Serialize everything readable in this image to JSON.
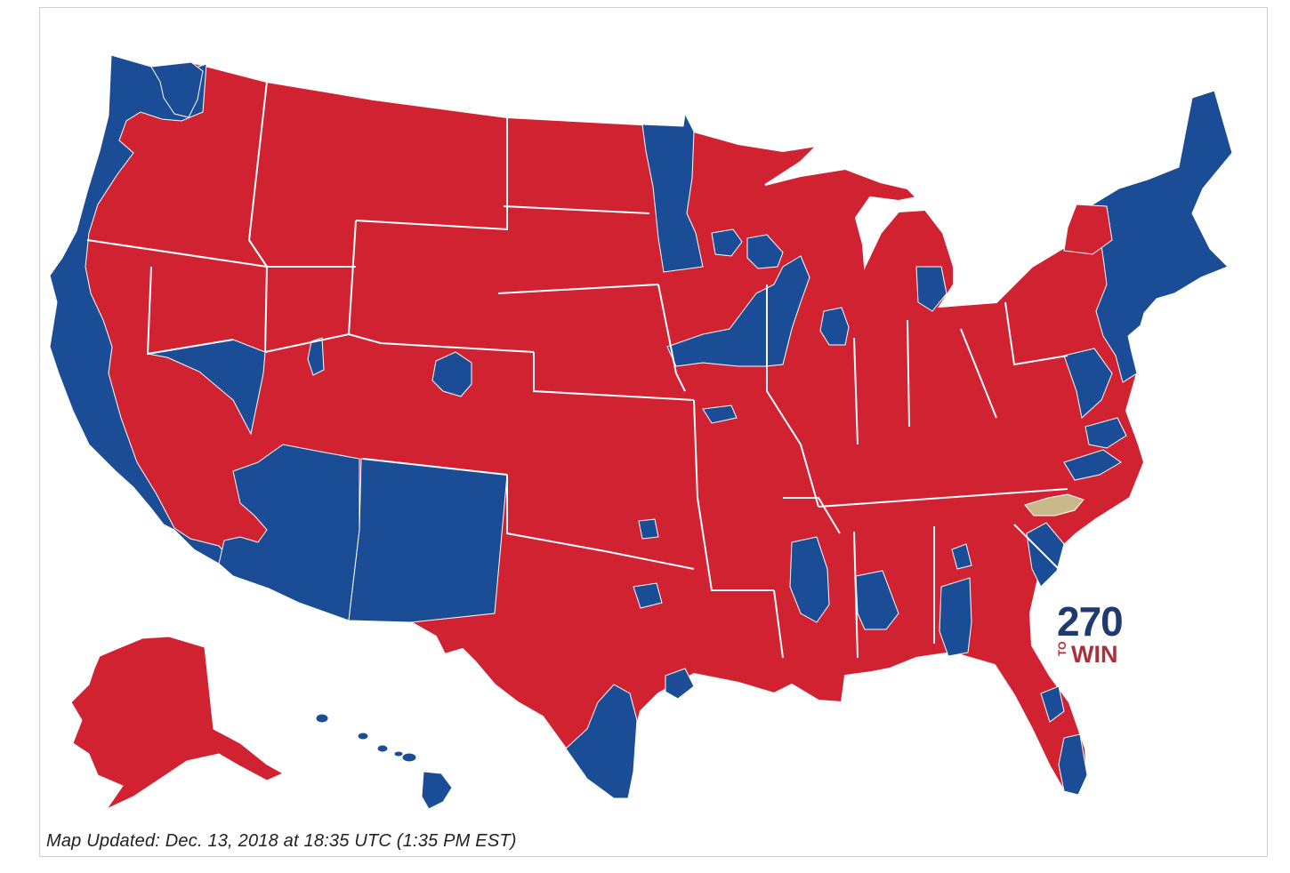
{
  "map": {
    "colors": {
      "republican": "#d12232",
      "democrat": "#1b4d96",
      "undecided": "#c9b889",
      "border": "#ffffff"
    }
  },
  "footer": {
    "updated_text": "Map Updated: Dec. 13, 2018 at 18:35 UTC (1:35 PM EST)"
  },
  "logo": {
    "number": "270",
    "to": "TO",
    "win": "WIN"
  }
}
